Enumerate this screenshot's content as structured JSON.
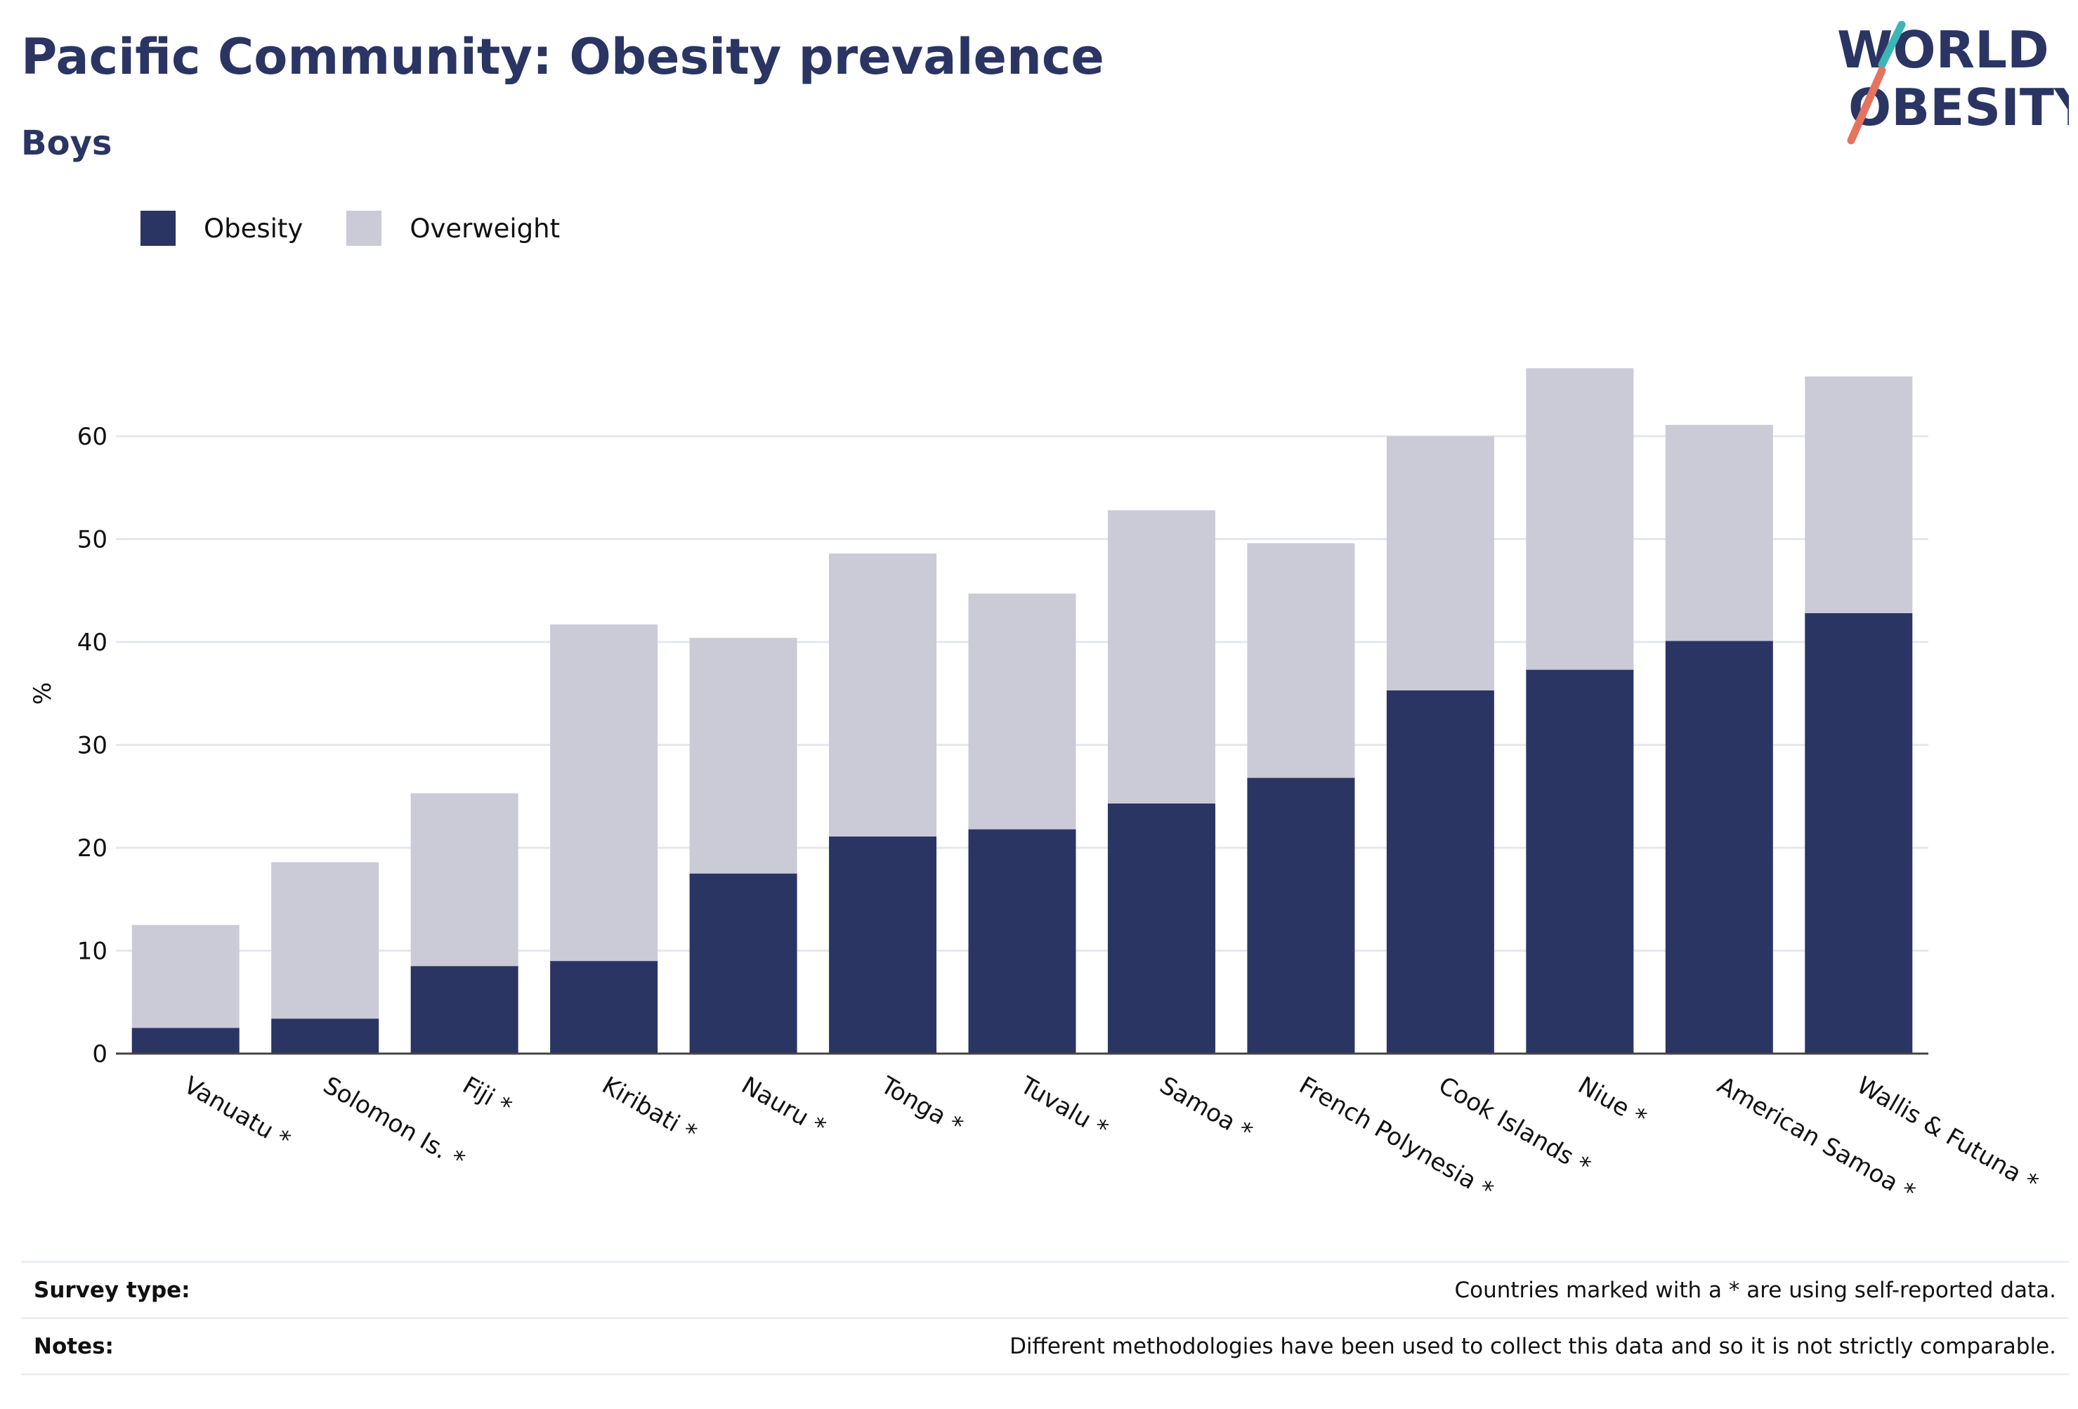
{
  "header": {
    "title": "Pacific Community: Obesity prevalence",
    "subtitle": "Boys"
  },
  "logo": {
    "line1": "WORLD",
    "line2": "OBESITY"
  },
  "legend": [
    {
      "label": "Obesity",
      "color": "#2a3563"
    },
    {
      "label": "Overweight",
      "color": "#cacbd7"
    }
  ],
  "chart_data": {
    "type": "bar",
    "stacked": true,
    "categories": [
      "Vanuatu *",
      "Solomon Is. *",
      "Fiji *",
      "Kiribati *",
      "Nauru *",
      "Tonga *",
      "Tuvalu *",
      "Samoa *",
      "French Polynesia *",
      "Cook Islands *",
      "Niue *",
      "American Samoa *",
      "Wallis & Futuna *"
    ],
    "series": [
      {
        "name": "Obesity",
        "color": "#2a3563",
        "values": [
          2.5,
          3.4,
          8.5,
          9.0,
          17.5,
          21.1,
          21.8,
          24.3,
          26.8,
          35.3,
          37.3,
          40.1,
          42.8
        ]
      },
      {
        "name": "Overweight",
        "color": "#cacbd7",
        "values": [
          10.0,
          15.2,
          16.8,
          32.7,
          22.9,
          27.5,
          22.9,
          28.5,
          22.8,
          24.7,
          29.3,
          21.0,
          23.0
        ]
      }
    ],
    "xlabel": "",
    "ylabel": "%",
    "ylim": [
      0,
      70
    ],
    "yticks": [
      0,
      10,
      20,
      30,
      40,
      50,
      60
    ],
    "grid": true,
    "legend_position": "top-left"
  },
  "footer": {
    "rows": [
      {
        "label": "Survey type:",
        "value": "Countries marked with a * are using self-reported data."
      },
      {
        "label": "Notes:",
        "value": "Different methodologies have been used to collect this data and so it is not strictly comparable."
      }
    ]
  }
}
